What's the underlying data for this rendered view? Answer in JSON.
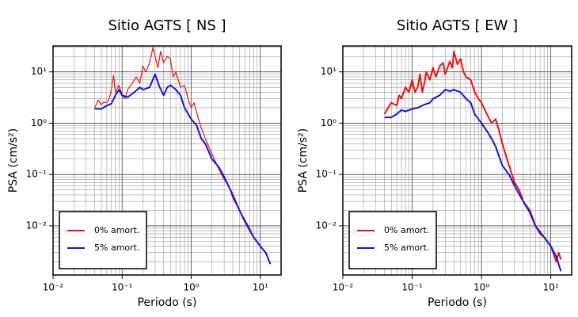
{
  "chart_data": [
    {
      "type": "line",
      "title": "Sitio AGTS [ NS ]",
      "x_label": "Periodo (s)",
      "y_label": "PSA (cm/s²)",
      "log_x": true,
      "log_y": true,
      "grid": true,
      "minor_grid": true,
      "legend": "lower left",
      "xlim": [
        0.01,
        20
      ],
      "ylim": [
        0.0011,
        32
      ],
      "xticks": [
        {
          "value": 0.01,
          "label": "10⁻²"
        },
        {
          "value": 0.1,
          "label": "10⁻¹"
        },
        {
          "value": 1,
          "label": "10⁰"
        },
        {
          "value": 10,
          "label": "10¹"
        }
      ],
      "yticks": [
        {
          "value": 0.01,
          "label": "10⁻²"
        },
        {
          "value": 0.1,
          "label": "10⁻¹"
        },
        {
          "value": 1,
          "label": "10⁰"
        },
        {
          "value": 10,
          "label": "10¹"
        }
      ],
      "series": [
        {
          "name": "0% amort.",
          "color": "#ee1111",
          "width": 1.2,
          "x": [
            0.04,
            0.045,
            0.05,
            0.055,
            0.06,
            0.065,
            0.07,
            0.075,
            0.08,
            0.09,
            0.1,
            0.11,
            0.12,
            0.14,
            0.16,
            0.18,
            0.2,
            0.22,
            0.25,
            0.28,
            0.3,
            0.33,
            0.36,
            0.4,
            0.45,
            0.5,
            0.55,
            0.6,
            0.7,
            0.8,
            0.9,
            1.0,
            1.1,
            1.2,
            1.4,
            1.6,
            1.8,
            2.0,
            2.5,
            3,
            3.5,
            4,
            5,
            6,
            7,
            8,
            10,
            12,
            14
          ],
          "values": [
            2.0,
            2.8,
            2.3,
            2.6,
            2.5,
            3.0,
            4.5,
            8.5,
            4.0,
            5.5,
            3.5,
            3.0,
            4.5,
            6,
            8,
            6,
            13,
            10,
            15,
            30,
            20,
            12,
            25,
            15,
            20,
            18,
            8,
            10,
            5,
            5.5,
            3,
            2,
            2.5,
            1.6,
            0.8,
            0.5,
            0.35,
            0.25,
            0.13,
            0.08,
            0.06,
            0.035,
            0.02,
            0.013,
            0.009,
            0.006,
            0.004,
            0.003,
            0.0018
          ]
        },
        {
          "name": "5% amort.",
          "color": "#1111ee",
          "width": 2,
          "x": [
            0.04,
            0.05,
            0.06,
            0.07,
            0.08,
            0.09,
            0.1,
            0.12,
            0.15,
            0.18,
            0.2,
            0.25,
            0.3,
            0.35,
            0.4,
            0.45,
            0.5,
            0.6,
            0.7,
            0.8,
            1.0,
            1.2,
            1.4,
            1.6,
            2.0,
            2.5,
            3,
            4,
            5,
            6,
            8,
            10,
            12,
            14
          ],
          "values": [
            1.9,
            1.9,
            2.2,
            2.4,
            3.5,
            4.5,
            3.5,
            3.2,
            4,
            5,
            4.5,
            5,
            9,
            5,
            3.5,
            5,
            5.5,
            4.5,
            3.5,
            2.0,
            1.2,
            0.9,
            0.5,
            0.4,
            0.2,
            0.14,
            0.09,
            0.04,
            0.02,
            0.012,
            0.006,
            0.004,
            0.003,
            0.0018
          ]
        }
      ]
    },
    {
      "type": "line",
      "title": "Sitio AGTS [ EW ]",
      "x_label": "Periodo (s)",
      "y_label": "PSA (cm/s²)",
      "log_x": true,
      "log_y": true,
      "grid": true,
      "minor_grid": true,
      "legend": "lower left",
      "xlim": [
        0.01,
        20
      ],
      "ylim": [
        0.0011,
        32
      ],
      "xticks": [
        {
          "value": 0.01,
          "label": "10⁻²"
        },
        {
          "value": 0.1,
          "label": "10⁻¹"
        },
        {
          "value": 1,
          "label": "10⁰"
        },
        {
          "value": 10,
          "label": "10¹"
        }
      ],
      "yticks": [
        {
          "value": 0.01,
          "label": "10⁻²"
        },
        {
          "value": 0.1,
          "label": "10⁻¹"
        },
        {
          "value": 1,
          "label": "10⁰"
        },
        {
          "value": 10,
          "label": "10¹"
        }
      ],
      "series": [
        {
          "name": "0% amort.",
          "color": "#ee1111",
          "width": 2,
          "x": [
            0.04,
            0.045,
            0.05,
            0.06,
            0.065,
            0.07,
            0.08,
            0.09,
            0.1,
            0.11,
            0.12,
            0.13,
            0.14,
            0.15,
            0.16,
            0.18,
            0.2,
            0.22,
            0.25,
            0.28,
            0.3,
            0.35,
            0.38,
            0.4,
            0.45,
            0.5,
            0.55,
            0.6,
            0.7,
            0.8,
            0.9,
            1.0,
            1.2,
            1.4,
            1.6,
            1.8,
            2.0,
            2.5,
            3,
            3.5,
            4,
            5,
            6,
            7,
            8,
            10,
            12,
            13,
            14
          ],
          "values": [
            1.5,
            2.0,
            2.5,
            2.2,
            3.5,
            3.0,
            5,
            4,
            7,
            4,
            5,
            9,
            4,
            6,
            10,
            7,
            12,
            8,
            13,
            15,
            9,
            16,
            12,
            25,
            14,
            18,
            10,
            8,
            7,
            4,
            3,
            2.5,
            1.5,
            1.0,
            1.2,
            0.7,
            0.4,
            0.15,
            0.07,
            0.05,
            0.03,
            0.02,
            0.01,
            0.007,
            0.006,
            0.004,
            0.002,
            0.003,
            0.0022
          ]
        },
        {
          "name": "5% amort.",
          "color": "#1111ee",
          "width": 2,
          "x": [
            0.04,
            0.05,
            0.06,
            0.07,
            0.08,
            0.1,
            0.12,
            0.15,
            0.18,
            0.2,
            0.25,
            0.3,
            0.35,
            0.4,
            0.5,
            0.6,
            0.7,
            0.8,
            1.0,
            1.2,
            1.4,
            1.6,
            2.0,
            2.5,
            3,
            4,
            5,
            6,
            8,
            10,
            12,
            14
          ],
          "values": [
            1.3,
            1.3,
            1.5,
            1.8,
            1.7,
            1.9,
            2.0,
            2.3,
            2.5,
            3,
            3.5,
            4.5,
            4.2,
            4.5,
            4.0,
            3.0,
            2.5,
            1.5,
            1.0,
            0.7,
            0.5,
            0.35,
            0.15,
            0.1,
            0.06,
            0.03,
            0.018,
            0.01,
            0.006,
            0.004,
            0.0025,
            0.0013
          ]
        }
      ]
    }
  ]
}
